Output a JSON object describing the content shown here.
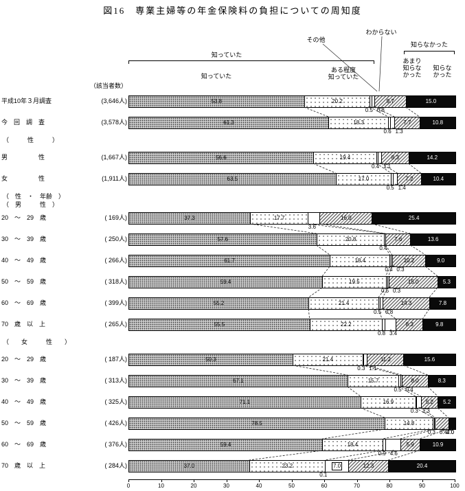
{
  "header": {
    "respondents_label": "（該当者数）",
    "bracket_knew": "知っていた",
    "col_knew": "知っていた",
    "col_somewhat": "ある程度\n知っていた",
    "col_other": "その他",
    "col_dontknow": "わからない",
    "bracket_not_know": "知らなかった",
    "col_not_much": "あまり\n知らな\nかった",
    "col_not_at_all": "知らな\nかった"
  },
  "axis": {
    "ticks": [
      0,
      10,
      20,
      30,
      40,
      50,
      60,
      70,
      80,
      90,
      100
    ],
    "unit": "%"
  },
  "chart_data": {
    "type": "bar",
    "stacked": true,
    "orientation": "horizontal",
    "title": "図16　専業主婦等の年金保険料の負担についての周知度",
    "xlim": [
      0,
      100
    ],
    "segments": [
      "知っていた",
      "ある程度知っていた",
      "その他",
      "わからない",
      "あまり知らなかった",
      "知らなかった"
    ],
    "rows": [
      {
        "label": "平成10年３月調査",
        "count": "(3,646人)",
        "values": [
          53.8,
          20.2,
          0.5,
          0.8,
          9.7,
          15.0
        ]
      },
      {
        "label": "今　回　調　査",
        "count": "(3,578人)",
        "values": [
          61.3,
          18.3,
          0.6,
          1.3,
          7.7,
          10.8
        ]
      },
      {
        "header": "（　　　性　　　）"
      },
      {
        "label": "男　　　　　性",
        "count": "(1,667人)",
        "values": [
          56.6,
          19.4,
          0.4,
          1.1,
          8.3,
          14.2
        ]
      },
      {
        "label": "女　　　　　性",
        "count": "(1,911人)",
        "values": [
          63.5,
          17.0,
          0.5,
          1.4,
          7.2,
          10.4
        ]
      },
      {
        "header": "（　性　・　年齢　）\n（　男　　　性　）"
      },
      {
        "label": "20　〜　29　歳",
        "count": "(  169人)",
        "values": [
          37.3,
          17.7,
          0.0,
          3.6,
          16.0,
          25.4
        ]
      },
      {
        "label": "30　〜　39　歳",
        "count": "(  250人)",
        "values": [
          57.6,
          20.8,
          0.0,
          0.4,
          7.6,
          13.6
        ]
      },
      {
        "label": "40　〜　49　歳",
        "count": "(  266人)",
        "values": [
          61.7,
          18.4,
          0.4,
          0.3,
          10.2,
          9.0
        ]
      },
      {
        "label": "50　〜　59　歳",
        "count": "(  318人)",
        "values": [
          59.4,
          19.5,
          0.5,
          0.3,
          15.0,
          5.3
        ]
      },
      {
        "label": "60　〜　69　歳",
        "count": "(  399人)",
        "values": [
          55.2,
          21.4,
          0.5,
          0.8,
          14.3,
          7.8
        ]
      },
      {
        "label": "70　歳　以　上",
        "count": "(  265人)",
        "values": [
          55.5,
          22.2,
          0.8,
          3.4,
          8.3,
          9.8
        ]
      },
      {
        "header": "（　　女　　　性　　）"
      },
      {
        "label": "20　〜　29　歳",
        "count": "(  187人)",
        "values": [
          50.3,
          21.4,
          0.3,
          1.1,
          11.2,
          15.6
        ]
      },
      {
        "label": "30　〜　39　歳",
        "count": "(  313人)",
        "values": [
          67.1,
          15.7,
          0.5,
          0.4,
          8.0,
          8.3
        ]
      },
      {
        "label": "40　〜　49　歳",
        "count": "(  325人)",
        "values": [
          71.1,
          16.9,
          0.3,
          1.3,
          5.2,
          5.2
        ]
      },
      {
        "label": "50　〜　59　歳",
        "count": "(  426人)",
        "values": [
          78.5,
          14.8,
          0.3,
          0.4,
          4.0,
          2.0
        ]
      },
      {
        "label": "60　〜　69　歳",
        "count": "(  376人)",
        "values": [
          59.4,
          18.4,
          0.9,
          4.6,
          5.9,
          10.9
        ]
      },
      {
        "label": "70　歳　以　上",
        "count": "(  284人)",
        "values": [
          37.0,
          23.2,
          0.1,
          7.0,
          12.3,
          20.4
        ]
      }
    ]
  }
}
